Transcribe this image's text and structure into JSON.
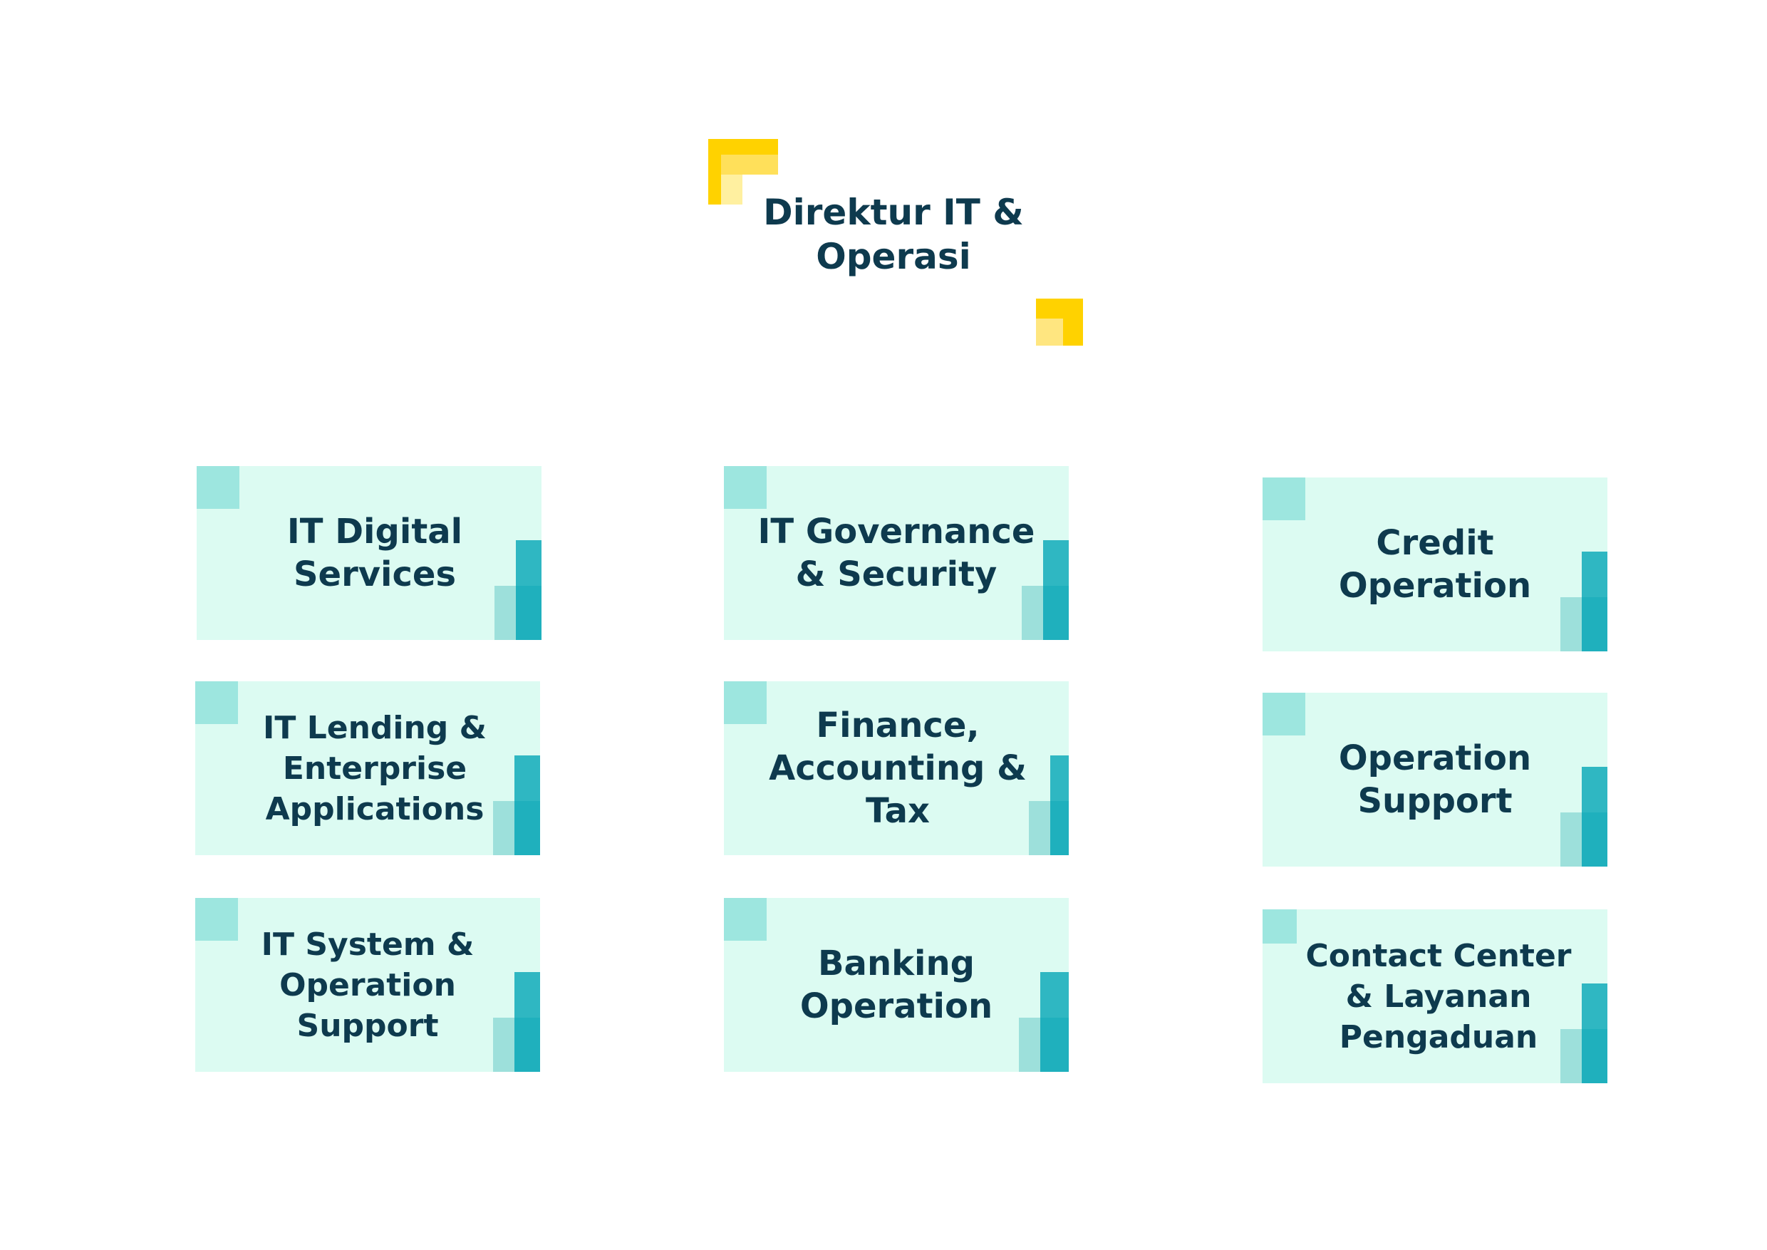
{
  "top": {
    "title": "Direktur IT & Operasi"
  },
  "units": [
    {
      "label": "IT Digital Services"
    },
    {
      "label": "IT Governance & Security"
    },
    {
      "label": "Credit Operation"
    },
    {
      "label": "IT Lending & Enterprise Applications"
    },
    {
      "label": "Finance, Accounting & Tax"
    },
    {
      "label": "Operation Support"
    },
    {
      "label": "IT System & Operation Support"
    },
    {
      "label": "Banking Operation"
    },
    {
      "label": "Contact Center & Layanan Pengaduan"
    }
  ],
  "colors": {
    "text": "#0e3a4e",
    "box_background": "#dcfbf2",
    "accent_teal": "#1fb0bd",
    "accent_light_teal": "#9de6df",
    "accent_yellow": "#ffd200"
  }
}
